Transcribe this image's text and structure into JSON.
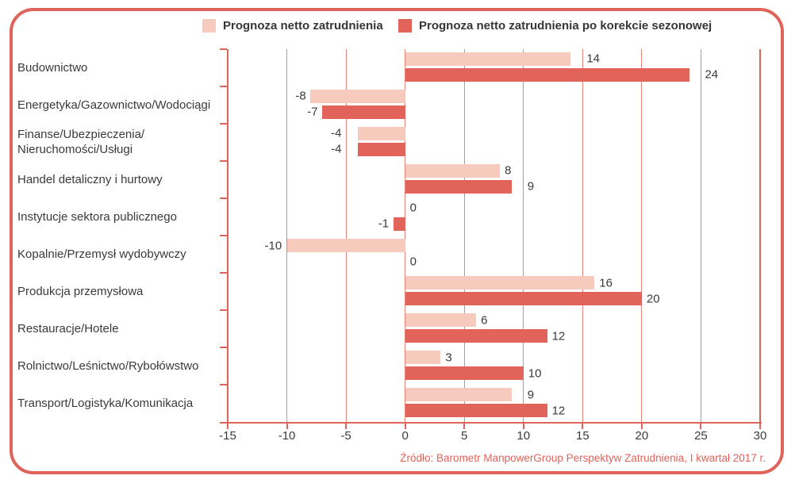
{
  "chart_data": {
    "type": "bar",
    "orientation": "horizontal",
    "title": "",
    "categories": [
      "Budownictwo",
      "Energetyka/Gazownictwo/Wodociągi",
      "Finanse/Ubezpieczenia/\nNieruchomości/Usługi",
      "Handel detaliczny i hurtowy",
      "Instytucje sektora publicznego",
      "Kopalnie/Przemysł wydobywczy",
      "Produkcja przemysłowa",
      "Restauracje/Hotele",
      "Rolnictwo/Leśnictwo/Rybołówstwo",
      "Transport/Logistyka/Komunikacja"
    ],
    "series": [
      {
        "name": "Prognoza netto zatrudnienia",
        "color": "#F6CBBE",
        "values": [
          14,
          -8,
          -4,
          8,
          0,
          -10,
          16,
          6,
          3,
          9
        ]
      },
      {
        "name": "Prognoza netto zatrudnienia po korekcie sezonowej",
        "color": "#E2635A",
        "values": [
          24,
          -7,
          -4,
          9,
          -1,
          0,
          20,
          12,
          10,
          12
        ]
      }
    ],
    "xlim": [
      -15,
      30
    ],
    "x_ticks": [
      -15,
      -10,
      -5,
      0,
      5,
      10,
      15,
      20,
      25,
      30
    ],
    "grid": "vertical",
    "legend_position": "top",
    "source": "Źródło: Barometr ManpowerGroup Perspektyw Zatrudnienia, I kwartał 2017 r."
  },
  "colors": {
    "frame_border": "#E0635A",
    "axis_line": "#E0635A",
    "gridline": "#E8847B",
    "text": "#3A3A3A",
    "source_text": "#E0635A",
    "background": "#FFFFFF"
  }
}
